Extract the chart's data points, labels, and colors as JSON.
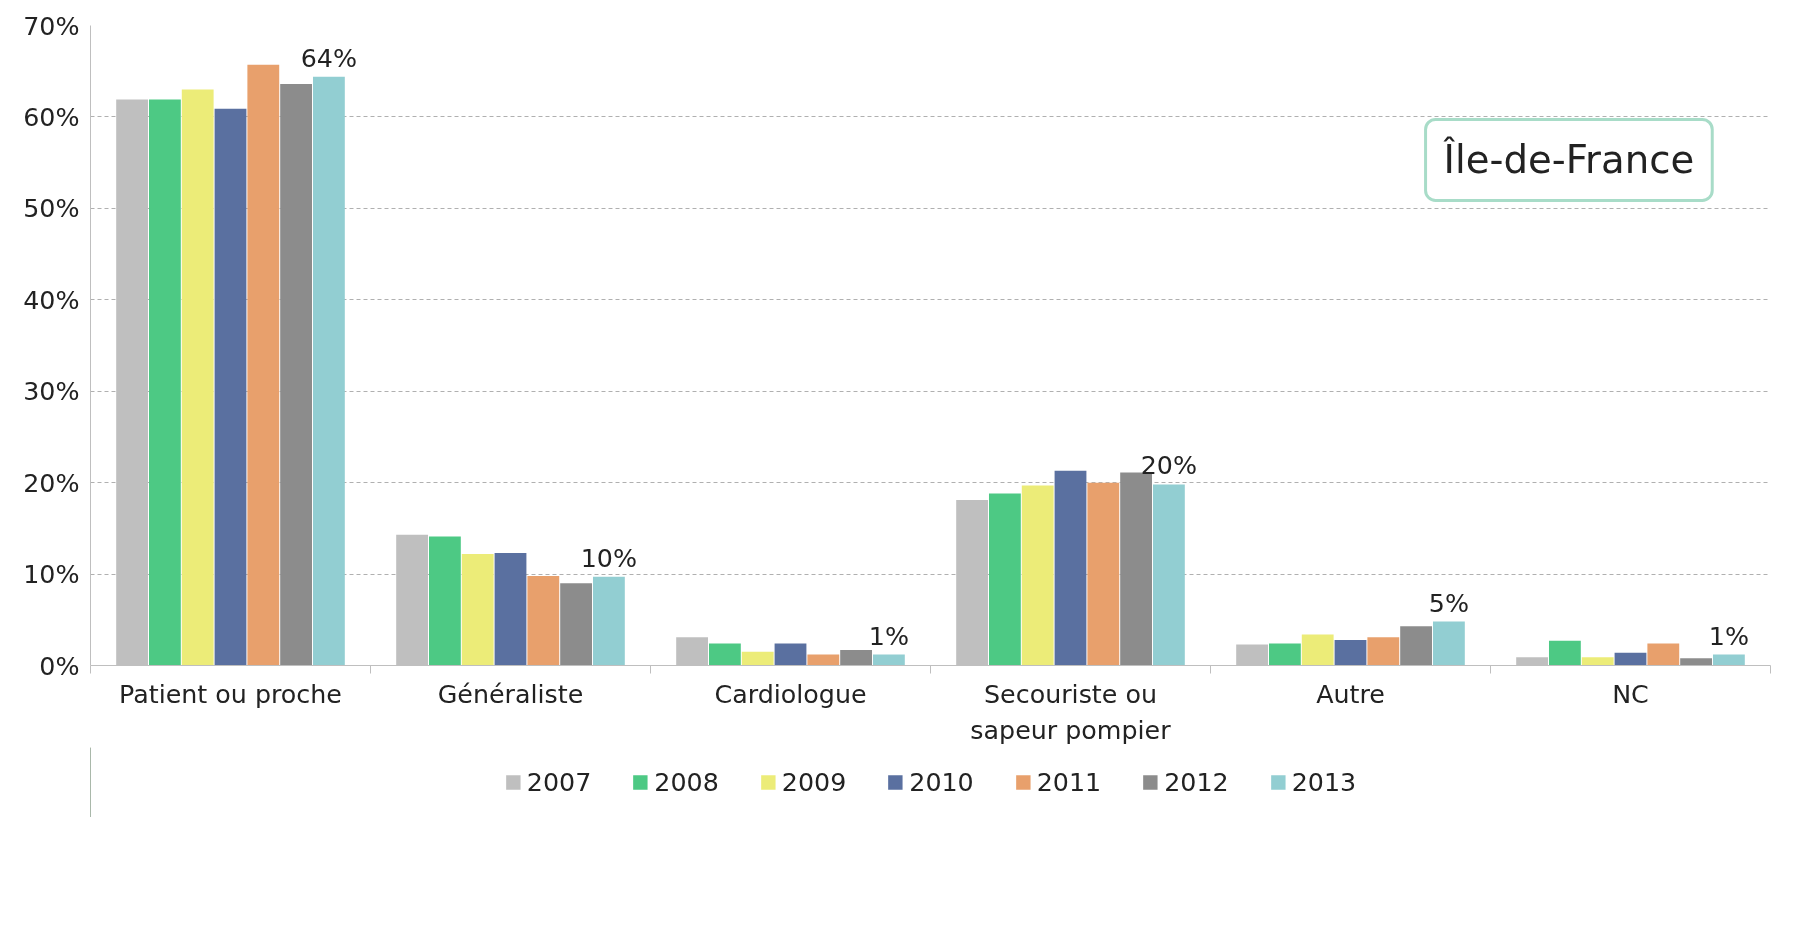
{
  "chart_data": {
    "type": "bar",
    "categories": [
      "Patient ou proche",
      "Généraliste",
      "Cardiologue",
      "Secouriste ou\nsapeur pompier",
      "Autre",
      "NC"
    ],
    "series": [
      {
        "name": "2007",
        "color": "#bfbfbf",
        "values": [
          61.9,
          14.3,
          3.1,
          18.1,
          2.3,
          0.9
        ]
      },
      {
        "name": "2008",
        "color": "#4dc984",
        "values": [
          61.9,
          14.1,
          2.4,
          18.8,
          2.4,
          2.7
        ]
      },
      {
        "name": "2009",
        "color": "#ecec78",
        "values": [
          63.0,
          12.2,
          1.5,
          19.7,
          3.4,
          0.9
        ]
      },
      {
        "name": "2010",
        "color": "#5a70a0",
        "values": [
          60.9,
          12.3,
          2.4,
          21.3,
          2.8,
          1.4
        ]
      },
      {
        "name": "2011",
        "color": "#e8a06c",
        "values": [
          65.7,
          9.8,
          1.2,
          20.0,
          3.1,
          2.4
        ]
      },
      {
        "name": "2012",
        "color": "#8c8c8c",
        "values": [
          63.6,
          9.0,
          1.7,
          21.1,
          4.3,
          0.8
        ]
      },
      {
        "name": "2013",
        "color": "#92ced2",
        "values": [
          64.4,
          9.7,
          1.2,
          19.8,
          4.8,
          1.2
        ],
        "value_labels": [
          "64%",
          "10%",
          "1%",
          "20%",
          "5%",
          "1%"
        ]
      }
    ],
    "ylim": [
      0,
      70
    ],
    "yticks": [
      {
        "value": 0,
        "label": "0%"
      },
      {
        "value": 10,
        "label": "10%"
      },
      {
        "value": 20,
        "label": "20%"
      },
      {
        "value": 30,
        "label": "30%"
      },
      {
        "value": 40,
        "label": "40%"
      },
      {
        "value": 50,
        "label": "50%"
      },
      {
        "value": 60,
        "label": "60%"
      },
      {
        "value": 70,
        "label": "70%"
      }
    ],
    "grid": "y",
    "legend": "bottom",
    "annotations": [
      "Île-de-France"
    ]
  }
}
